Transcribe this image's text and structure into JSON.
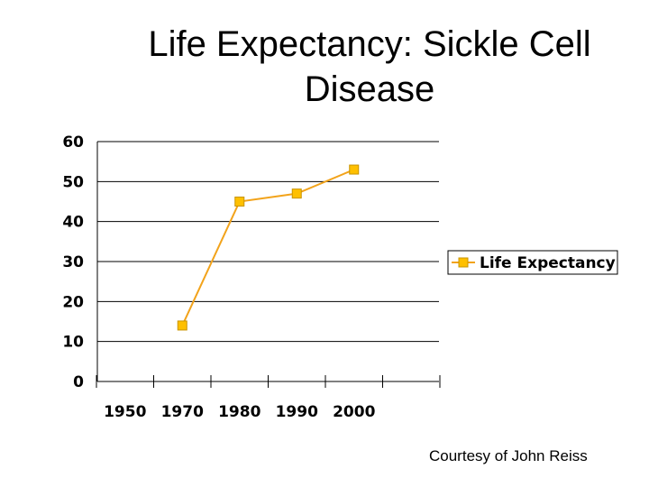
{
  "chart_data": {
    "type": "line",
    "title_lines": [
      "Life Expectancy: Sickle Cell",
      "Disease"
    ],
    "categories": [
      "1950",
      "1970",
      "1980",
      "1990",
      "2000"
    ],
    "series": [
      {
        "name": "Life Expectancy",
        "points": [
          {
            "x": "1970",
            "y": 14
          },
          {
            "x": "1980",
            "y": 45
          },
          {
            "x": "1990",
            "y": 47
          },
          {
            "x": "2000",
            "y": 53
          }
        ]
      }
    ],
    "y_ticks": [
      0,
      10,
      20,
      30,
      40,
      50,
      60
    ],
    "ylim": [
      0,
      60
    ],
    "grid": true,
    "legend_position": "right",
    "xlabel": "",
    "ylabel": ""
  },
  "colors": {
    "line": "#F2A31B",
    "marker_fill": "#FFC000",
    "marker_stroke": "#C89400",
    "grid": "#000000"
  },
  "footer": {
    "courtesy": "Courtesy of John Reiss"
  }
}
